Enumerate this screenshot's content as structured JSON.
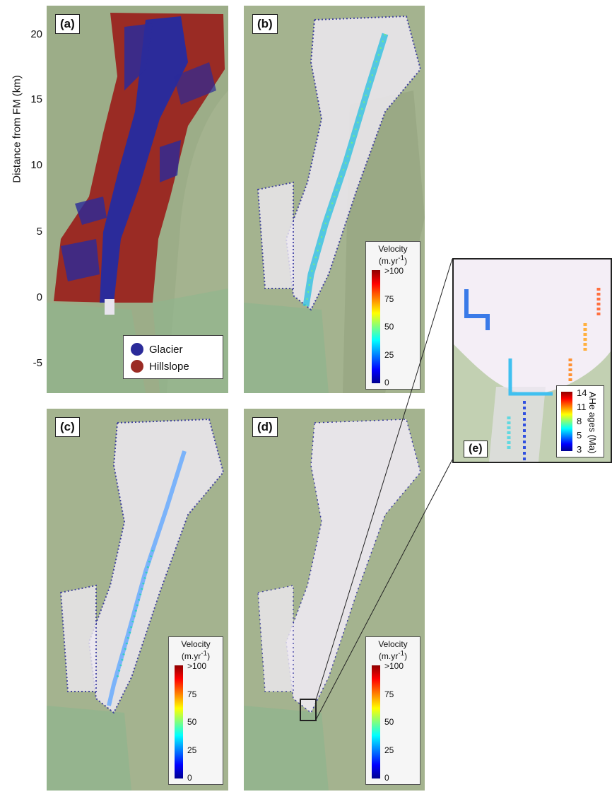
{
  "figure": {
    "panels": [
      "(a)",
      "(b)",
      "(c)",
      "(d)",
      "(e)"
    ],
    "y_axis_label": "Distance from FM (km)",
    "y_ticks": [
      "20",
      "15",
      "10",
      "5",
      "0",
      "-5"
    ],
    "legend": {
      "glacier": "Glacier",
      "hillslope": "Hillslope",
      "glacier_color": "#2b2b9a",
      "hillslope_color": "#9a2b24"
    },
    "velocity_colorbar": {
      "title_line1": "Velocity",
      "title_line2": "(m.yr",
      "title_sup": "-1",
      "title_close": ")",
      "ticks": [
        ">100",
        "75",
        "50",
        "25",
        "0"
      ]
    },
    "ahe_colorbar": {
      "title": "AHe ages (Ma)",
      "ticks": [
        "14",
        "11",
        "8",
        "5",
        "3"
      ]
    }
  }
}
